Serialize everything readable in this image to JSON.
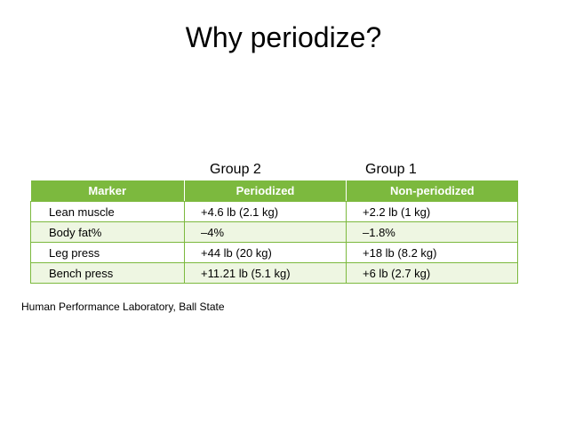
{
  "slide": {
    "title": "Why periodize?"
  },
  "groups": {
    "group_2": "Group 2",
    "group_1": "Group 1"
  },
  "table": {
    "headers": [
      "Marker",
      "Periodized",
      "Non-periodized"
    ],
    "rows": [
      [
        "Lean muscle",
        "+4.6 lb (2.1 kg)",
        "+2.2 lb (1 kg)"
      ],
      [
        "Body fat%",
        "–4%",
        "–1.8%"
      ],
      [
        "Leg press",
        "+44 lb (20 kg)",
        "+18 lb (8.2 kg)"
      ],
      [
        "Bench press",
        "+11.21 lb (5.1 kg)",
        "+6 lb (2.7 kg)"
      ]
    ]
  },
  "footer": {
    "source": "Human Performance Laboratory, Ball State"
  },
  "colors": {
    "header_green": "#7cb93e",
    "row_tint": "#eef6e2"
  }
}
